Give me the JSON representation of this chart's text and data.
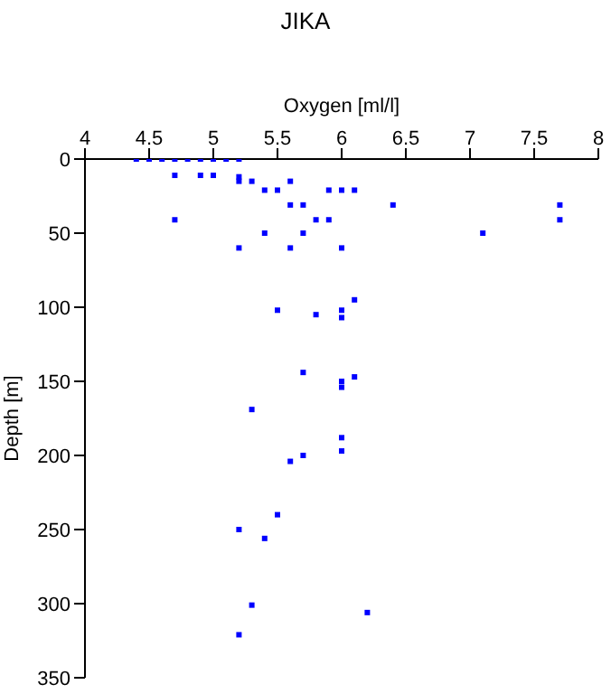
{
  "chart_data": {
    "type": "scatter",
    "title": "JIKA",
    "xlabel": "Oxygen [ml/l]",
    "ylabel": "Depth [m]",
    "xlim": [
      4,
      8
    ],
    "xticks": [
      4,
      4.5,
      5,
      5.5,
      6,
      6.5,
      7,
      7.5,
      8
    ],
    "ylim": [
      350,
      0
    ],
    "yticks": [
      0,
      50,
      100,
      150,
      200,
      250,
      300,
      350
    ],
    "grid": false,
    "marker": "square",
    "legend": false,
    "series": [
      {
        "color": "#0000ff",
        "x": [
          4.4,
          4.5,
          4.6,
          4.7,
          4.8,
          4.9,
          5.0,
          5.1,
          5.2,
          4.7,
          4.9,
          5.0,
          5.2,
          5.3,
          5.6,
          5.2,
          5.4,
          5.5,
          5.9,
          6.0,
          6.1,
          5.6,
          5.7,
          6.4,
          7.7,
          4.7,
          5.8,
          5.9,
          7.7,
          5.4,
          5.7,
          7.1,
          5.2,
          5.6,
          6.0,
          6.1,
          5.5,
          6.0,
          5.8,
          6.0,
          5.7,
          6.1,
          6.0,
          6.0,
          5.3,
          6.0,
          6.0,
          5.7,
          5.6,
          5.5,
          5.2,
          5.4,
          5.3,
          6.2,
          5.2
        ],
        "values": [
          0,
          0,
          0,
          0,
          0,
          0,
          0,
          0,
          0,
          11,
          11,
          11,
          15,
          15,
          15,
          12,
          21,
          21,
          21,
          21,
          21,
          31,
          31,
          31,
          31,
          41,
          41,
          41,
          41,
          50,
          50,
          50,
          60,
          60,
          60,
          95,
          102,
          102,
          105,
          107,
          144,
          147,
          150,
          154,
          169,
          188,
          197,
          200,
          204,
          240,
          250,
          256,
          301,
          306,
          321
        ]
      }
    ]
  }
}
